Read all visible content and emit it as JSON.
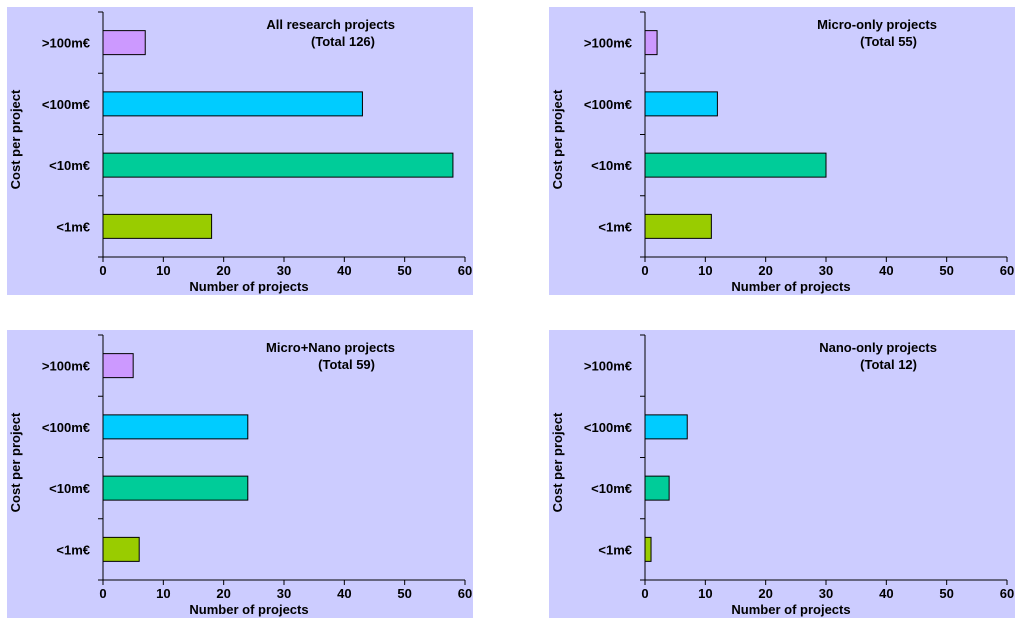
{
  "colors": {
    "background": "#CCCCFF",
    "axis": "#000000",
    "bars": [
      "#99CC00",
      "#00CC99",
      "#00CCFF",
      "#CC99FF"
    ]
  },
  "chart_data": [
    {
      "type": "bar",
      "orientation": "horizontal",
      "title": "All research projects",
      "subtitle": "(Total 126)",
      "xlabel": "Number of projects",
      "ylabel": "Cost per project",
      "categories": [
        "<1m€",
        "<10m€",
        "<100m€",
        ">100m€"
      ],
      "values": [
        18,
        58,
        43,
        7
      ],
      "xlim": [
        0,
        60
      ],
      "xticks": [
        "0",
        "10",
        "20",
        "30",
        "40",
        "50",
        "60"
      ],
      "grid": false,
      "legend": "none"
    },
    {
      "type": "bar",
      "orientation": "horizontal",
      "title": "Micro-only  projects",
      "subtitle": "(Total 55)",
      "xlabel": "Number of projects",
      "ylabel": "Cost per project",
      "categories": [
        "<1m€",
        "<10m€",
        "<100m€",
        ">100m€"
      ],
      "values": [
        11,
        30,
        12,
        2
      ],
      "xlim": [
        0,
        60
      ],
      "xticks": [
        "0",
        "10",
        "20",
        "30",
        "40",
        "50",
        "60"
      ],
      "grid": false,
      "legend": "none"
    },
    {
      "type": "bar",
      "orientation": "horizontal",
      "title": "Micro+Nano  projects",
      "subtitle": "(Total 59)",
      "xlabel": "Number of projects",
      "ylabel": "Cost per project",
      "categories": [
        "<1m€",
        "<10m€",
        "<100m€",
        ">100m€"
      ],
      "values": [
        6,
        24,
        24,
        5
      ],
      "xlim": [
        0,
        60
      ],
      "xticks": [
        "0",
        "10",
        "20",
        "30",
        "40",
        "50",
        "60"
      ],
      "grid": false,
      "legend": "none"
    },
    {
      "type": "bar",
      "orientation": "horizontal",
      "title": "Nano-only  projects",
      "subtitle": "(Total 12)",
      "xlabel": "Number of projects",
      "ylabel": "Cost per project",
      "categories": [
        "<1m€",
        "<10m€",
        "<100m€",
        ">100m€"
      ],
      "values": [
        1,
        4,
        7,
        0
      ],
      "xlim": [
        0,
        60
      ],
      "xticks": [
        "0",
        "10",
        "20",
        "30",
        "40",
        "50",
        "60"
      ],
      "grid": false,
      "legend": "none"
    }
  ]
}
